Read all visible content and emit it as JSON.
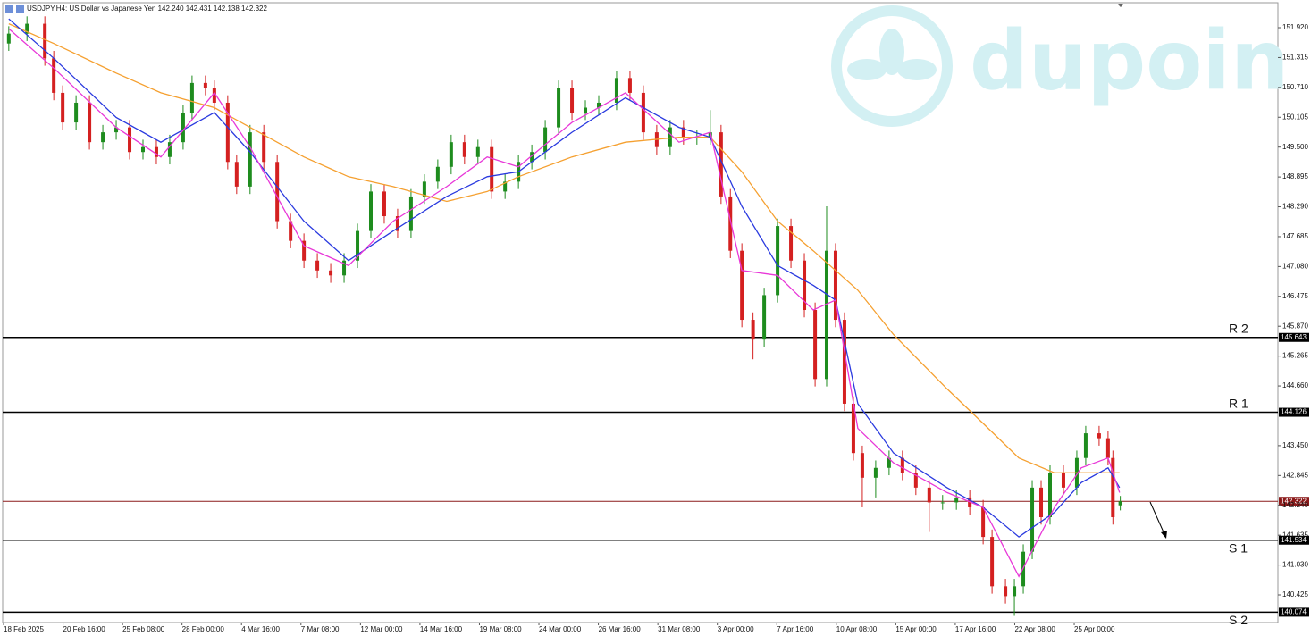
{
  "header": "USDJPY,H4: US Dollar vs Japanese Yen  142.240 142.431 142.138 142.322",
  "watermark": "dupoin",
  "chart_data": {
    "type": "candlestick",
    "up_color": "#1e8c1e",
    "down_color": "#d42020",
    "xlim": [
      0,
      342.8
    ],
    "ylim": [
      139.864,
      152.427
    ],
    "xticks": [
      {
        "value": 0,
        "label": "18 Feb 2025"
      },
      {
        "value": 16,
        "label": "20 Feb 16:00"
      },
      {
        "value": 32,
        "label": "25 Feb 08:00"
      },
      {
        "value": 48,
        "label": "28 Feb 00:00"
      },
      {
        "value": 64,
        "label": "4 Mar 16:00"
      },
      {
        "value": 80,
        "label": "7 Mar 08:00"
      },
      {
        "value": 96,
        "label": "12 Mar 00:00"
      },
      {
        "value": 112,
        "label": "14 Mar 16:00"
      },
      {
        "value": 128,
        "label": "19 Mar 08:00"
      },
      {
        "value": 144,
        "label": "24 Mar 00:00"
      },
      {
        "value": 160,
        "label": "26 Mar 16:00"
      },
      {
        "value": 176,
        "label": "31 Mar 08:00"
      },
      {
        "value": 192,
        "label": "3 Apr 00:00"
      },
      {
        "value": 208,
        "label": "7 Apr 16:00"
      },
      {
        "value": 224,
        "label": "10 Apr 08:00"
      },
      {
        "value": 240,
        "label": "15 Apr 00:00"
      },
      {
        "value": 256,
        "label": "17 Apr 16:00"
      },
      {
        "value": 272,
        "label": "22 Apr 08:00"
      },
      {
        "value": 288,
        "label": "25 Apr 00:00"
      }
    ],
    "yticks": [
      {
        "value": 151.92,
        "label": "151.920"
      },
      151.315,
      {
        "value": 150.71,
        "label": "150.710"
      },
      150.105,
      {
        "value": 149.5,
        "label": "149.500"
      },
      148.895,
      {
        "value": 148.29,
        "label": "148.290"
      },
      147.685,
      {
        "value": 147.08,
        "label": "147.080"
      },
      146.475,
      {
        "value": 145.87,
        "label": "145.870"
      },
      145.265,
      {
        "value": 144.66,
        "label": "144.660"
      },
      {
        "value": 143.45,
        "label": "143.450"
      },
      142.845,
      {
        "value": 142.24,
        "label": "142.240"
      },
      141.635,
      {
        "value": 141.03,
        "label": "141.030"
      },
      140.425
    ],
    "x": [
      1.4,
      6.3,
      11.1,
      13.5,
      15.9,
      19.5,
      23.1,
      26.7,
      30.3,
      33.9,
      37.5,
      41.1,
      44.7,
      48.3,
      50.7,
      54.3,
      56.7,
      60.3,
      62.7,
      66.3,
      70.0,
      73.6,
      77.2,
      80.8,
      84.4,
      88.0,
      91.6,
      95.2,
      98.8,
      102.4,
      106.0,
      109.6,
      113.2,
      116.8,
      120.4,
      124.0,
      127.6,
      131.3,
      134.9,
      138.5,
      142.1,
      145.7,
      149.3,
      152.9,
      156.5,
      160.1,
      164.9,
      168.5,
      172.1,
      175.7,
      179.3,
      182.9,
      186.5,
      190.1,
      193.0,
      195.5,
      198.6,
      201.6,
      204.6,
      208.2,
      211.8,
      215.4,
      218.3,
      221.4,
      223.8,
      226.2,
      228.6,
      231.0,
      234.6,
      238.2,
      241.8,
      245.4,
      249.0,
      252.6,
      256.3,
      259.9,
      263.5,
      265.9,
      269.5,
      271.9,
      274.3,
      276.7,
      279.1,
      281.5,
      285.1,
      288.7,
      291.1,
      294.7,
      297.1,
      298.4,
      300.4
    ],
    "open": [
      151.6,
      151.8,
      152.0,
      151.3,
      150.6,
      150.0,
      150.4,
      149.6,
      149.8,
      149.9,
      149.4,
      149.5,
      149.3,
      149.6,
      150.2,
      150.8,
      150.7,
      150.4,
      149.2,
      148.7,
      149.8,
      149.2,
      148.0,
      147.6,
      147.2,
      147.0,
      146.9,
      147.2,
      147.8,
      148.6,
      148.1,
      147.8,
      148.5,
      148.8,
      149.1,
      149.6,
      149.3,
      149.5,
      148.6,
      148.8,
      149.2,
      149.4,
      149.9,
      150.7,
      150.2,
      150.3,
      150.4,
      150.9,
      150.6,
      149.8,
      149.5,
      149.9,
      149.7,
      149.7,
      149.8,
      148.5,
      147.4,
      146.0,
      145.6,
      146.5,
      147.9,
      147.2,
      146.2,
      144.8,
      147.4,
      146.0,
      144.3,
      143.3,
      142.8,
      143.0,
      143.2,
      142.9,
      142.6,
      142.3,
      142.3,
      142.4,
      142.2,
      141.6,
      140.6,
      140.4,
      140.6,
      141.3,
      142.6,
      142.0,
      142.9,
      142.6,
      143.2,
      143.7,
      143.6,
      143.2,
      142.24
    ],
    "high": [
      151.95,
      152.15,
      152.15,
      151.45,
      150.75,
      150.55,
      150.55,
      149.95,
      150.05,
      150.05,
      149.65,
      149.65,
      149.75,
      150.35,
      150.95,
      150.95,
      150.85,
      150.55,
      149.35,
      149.95,
      149.95,
      149.35,
      148.15,
      147.75,
      147.35,
      147.15,
      147.35,
      147.95,
      148.75,
      148.75,
      148.25,
      148.65,
      148.95,
      149.25,
      149.75,
      149.75,
      149.65,
      149.65,
      148.95,
      149.35,
      149.55,
      150.05,
      150.85,
      150.85,
      150.45,
      150.55,
      151.05,
      151.05,
      150.75,
      149.95,
      150.05,
      150.05,
      149.85,
      150.25,
      149.95,
      148.65,
      147.55,
      146.15,
      146.65,
      148.05,
      148.05,
      147.35,
      146.35,
      148.3,
      147.55,
      146.15,
      144.45,
      143.45,
      143.15,
      143.35,
      143.35,
      143.05,
      142.75,
      142.45,
      142.55,
      142.55,
      142.35,
      141.75,
      140.75,
      140.75,
      141.45,
      142.75,
      142.75,
      143.05,
      143.05,
      143.35,
      143.85,
      143.85,
      143.75,
      143.35,
      142.431
    ],
    "low": [
      151.45,
      151.65,
      151.15,
      150.45,
      149.85,
      149.85,
      149.45,
      149.45,
      149.65,
      149.25,
      149.25,
      149.15,
      149.15,
      149.45,
      150.05,
      150.55,
      150.25,
      149.05,
      148.55,
      148.55,
      149.05,
      147.85,
      147.45,
      147.05,
      146.85,
      146.75,
      146.75,
      147.05,
      147.65,
      147.95,
      147.65,
      147.65,
      148.35,
      148.65,
      148.95,
      149.15,
      149.15,
      148.45,
      148.45,
      148.65,
      149.05,
      149.25,
      149.75,
      150.05,
      150.05,
      150.15,
      150.25,
      150.45,
      149.65,
      149.35,
      149.35,
      149.55,
      149.55,
      149.55,
      148.35,
      147.25,
      145.85,
      145.2,
      145.45,
      146.35,
      147.05,
      146.05,
      144.65,
      144.65,
      145.85,
      144.15,
      143.15,
      142.2,
      142.4,
      142.85,
      142.75,
      142.45,
      141.7,
      142.15,
      142.15,
      142.05,
      141.45,
      140.45,
      140.25,
      140.0,
      140.45,
      141.15,
      141.85,
      141.85,
      142.45,
      142.45,
      143.05,
      143.45,
      143.05,
      141.85,
      142.138
    ],
    "close": [
      151.8,
      152.0,
      151.3,
      150.6,
      150.0,
      150.4,
      149.6,
      149.8,
      149.9,
      149.4,
      149.5,
      149.3,
      149.6,
      150.2,
      150.8,
      150.7,
      150.4,
      149.2,
      148.7,
      149.8,
      149.2,
      148.0,
      147.6,
      147.2,
      147.0,
      146.9,
      147.2,
      147.8,
      148.6,
      148.1,
      147.8,
      148.5,
      148.8,
      149.1,
      149.6,
      149.3,
      149.5,
      148.6,
      148.8,
      149.2,
      149.4,
      149.9,
      150.7,
      150.2,
      150.3,
      150.4,
      150.9,
      150.6,
      149.8,
      149.5,
      149.9,
      149.7,
      149.7,
      149.8,
      148.5,
      147.4,
      146.0,
      145.6,
      146.5,
      147.9,
      147.2,
      146.2,
      144.8,
      147.4,
      146.0,
      144.3,
      143.3,
      142.8,
      143.0,
      143.2,
      142.9,
      142.6,
      142.3,
      142.3,
      142.4,
      142.2,
      141.6,
      140.6,
      140.4,
      140.6,
      141.3,
      142.6,
      142.0,
      142.9,
      142.6,
      143.2,
      143.7,
      143.6,
      143.2,
      142.0,
      142.322
    ],
    "lines": [
      {
        "color": "#f5a030",
        "x": [
          1.4,
          13.5,
          30.3,
          42.3,
          56.7,
          66.3,
          80.8,
          92.8,
          104.8,
          119.2,
          130.1,
          138.5,
          152.9,
          167.3,
          181.7,
          190.1,
          198.6,
          208.2,
          217.8,
          223.8,
          229.8,
          239.4,
          253.8,
          263.5,
          273.1,
          282.7,
          289.9,
          297.1,
          300.2
        ],
        "values": [
          152.0,
          151.6,
          151.0,
          150.6,
          150.3,
          149.9,
          149.3,
          148.9,
          148.7,
          148.4,
          148.6,
          148.9,
          149.3,
          149.6,
          149.7,
          149.7,
          149.0,
          148.0,
          147.4,
          147.0,
          146.6,
          145.7,
          144.6,
          143.9,
          143.2,
          142.9,
          142.9,
          142.9,
          142.9
        ]
      },
      {
        "color": "#2a3adf",
        "x": [
          1.4,
          13.5,
          30.3,
          42.3,
          56.7,
          66.3,
          80.8,
          92.8,
          104.8,
          119.2,
          130.1,
          138.5,
          152.9,
          167.3,
          181.7,
          190.1,
          198.6,
          208.2,
          217.8,
          223.8,
          229.8,
          239.4,
          253.8,
          263.5,
          273.1,
          282.7,
          289.9,
          297.1,
          300.2
        ],
        "values": [
          152.1,
          151.3,
          150.1,
          149.6,
          150.2,
          149.4,
          148.0,
          147.2,
          147.8,
          148.5,
          148.9,
          149.0,
          149.8,
          150.5,
          149.9,
          149.7,
          148.3,
          147.1,
          146.7,
          146.4,
          144.3,
          143.3,
          142.6,
          142.2,
          141.6,
          142.1,
          142.7,
          143.0,
          142.6
        ]
      },
      {
        "color": "#e838d8",
        "x": [
          1.4,
          13.5,
          30.3,
          42.3,
          56.7,
          66.3,
          80.8,
          92.8,
          104.8,
          119.2,
          130.1,
          138.5,
          152.9,
          167.3,
          181.7,
          190.1,
          198.6,
          208.2,
          217.8,
          223.8,
          229.8,
          239.4,
          253.8,
          263.5,
          273.1,
          282.7,
          289.9,
          297.1,
          300.2
        ],
        "values": [
          151.9,
          151.1,
          149.9,
          149.3,
          150.6,
          149.5,
          147.5,
          147.1,
          148.0,
          148.7,
          149.3,
          149.1,
          150.0,
          150.6,
          149.6,
          149.8,
          147.0,
          146.9,
          146.2,
          146.4,
          143.8,
          143.1,
          142.5,
          142.2,
          140.8,
          142.2,
          143.0,
          143.2,
          142.5
        ]
      }
    ],
    "levels": [
      {
        "label": "R 2",
        "value": 145.643,
        "color": "#000000"
      },
      {
        "label": "R 1",
        "value": 144.126,
        "color": "#000000"
      },
      {
        "value": 142.322,
        "color": "#8b1a1a"
      },
      {
        "label": "S 1",
        "value": 141.534,
        "color": "#000000"
      },
      {
        "label": "S 2",
        "value": 140.074,
        "color": "#000000"
      }
    ]
  }
}
